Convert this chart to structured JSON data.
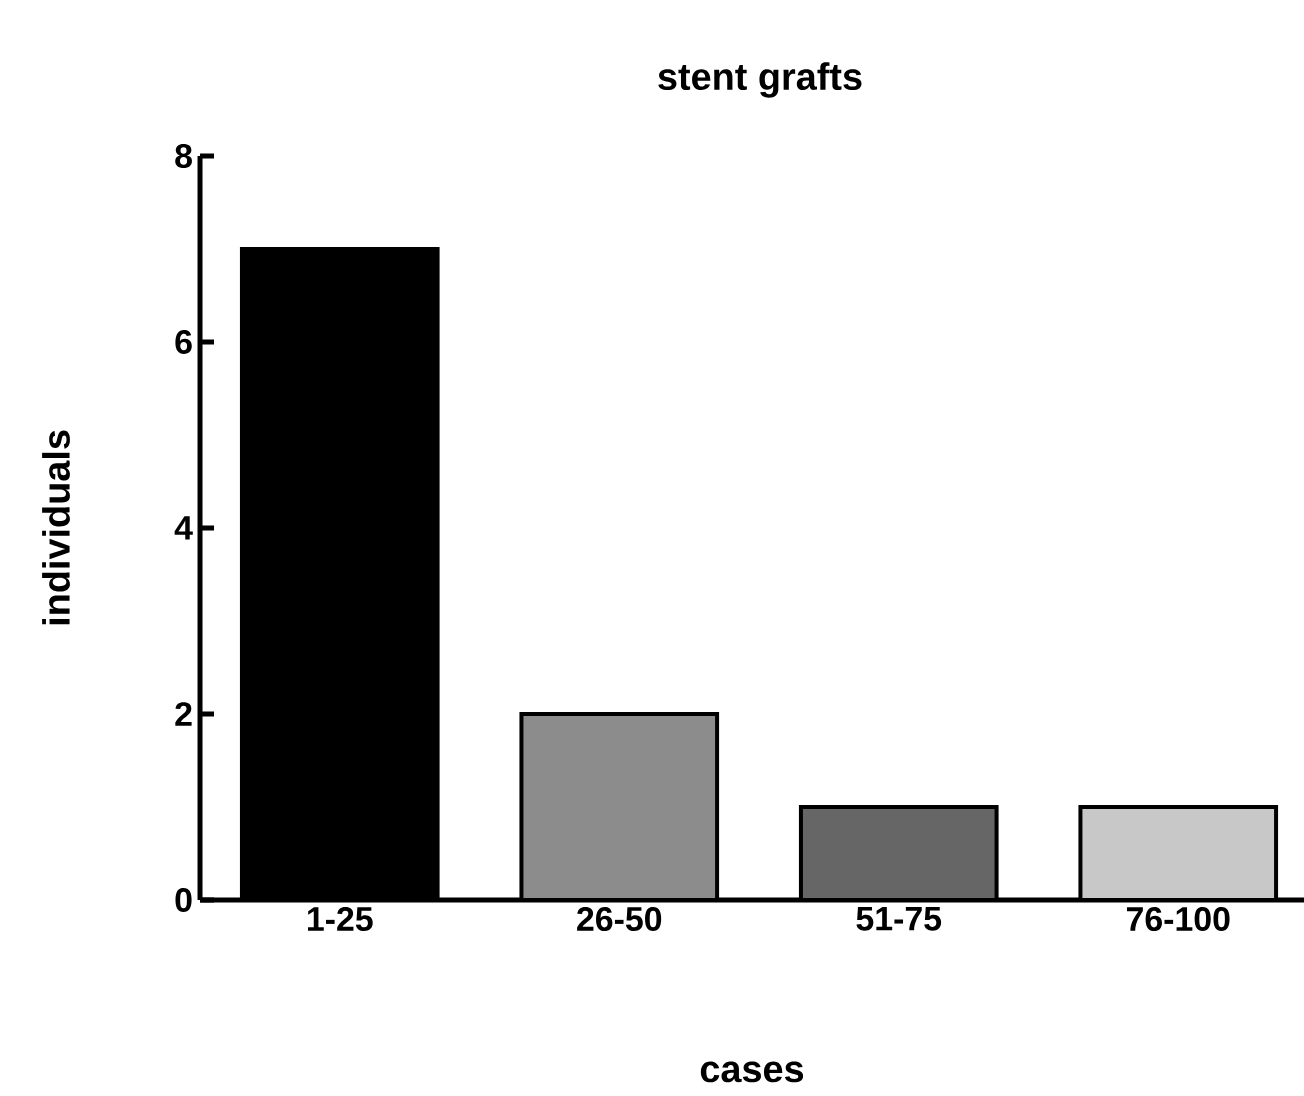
{
  "chart_data": {
    "type": "bar",
    "title": "stent grafts",
    "xlabel": "cases",
    "ylabel": "individuals",
    "categories": [
      "1-25",
      "26-50",
      "51-75",
      "76-100"
    ],
    "values": [
      7,
      2,
      1,
      1
    ],
    "colors": [
      "#000000",
      "#8c8c8c",
      "#666666",
      "#c8c8c8"
    ],
    "ylim": [
      0,
      8
    ],
    "yticks": [
      0,
      2,
      4,
      6,
      8
    ],
    "grid": false
  }
}
